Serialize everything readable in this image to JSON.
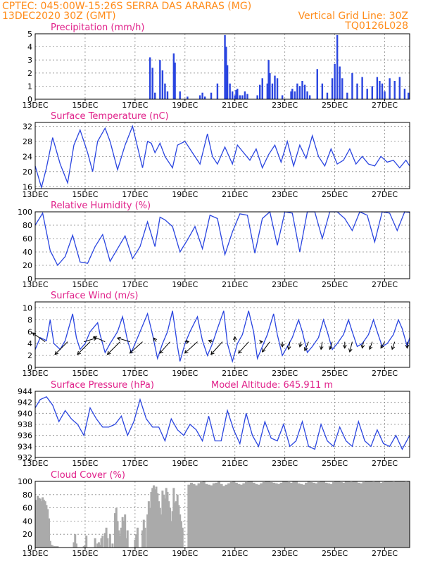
{
  "header": {
    "line1": "CPTEC:  045:00W-15:26S  SERRA DAS ARARAS (MG)",
    "line2_left": "13DEC2020 30Z (GMT)",
    "line2_right": "Vertical Grid Line: 30Z",
    "line3_right": "TQ0126L028"
  },
  "x_axis": {
    "tick_labels": [
      "13DEC",
      "15DEC",
      "17DEC",
      "19DEC",
      "21DEC",
      "23DEC",
      "25DEC",
      "27DEC"
    ],
    "tick_days": [
      0,
      2,
      4,
      6,
      8,
      10,
      12,
      14
    ],
    "range_days": [
      0,
      15
    ]
  },
  "colors": {
    "header": "#ff8c1a",
    "panel_title": "#e0218a",
    "line": "#2a45e0",
    "bars": "#2a45e0",
    "cloud_fill": "#aaaaaa"
  },
  "chart_data": [
    {
      "type": "bar",
      "title": "Precipitation (mm/h)",
      "ylim": [
        0,
        5
      ],
      "yticks": [
        0,
        1,
        2,
        3,
        4,
        5
      ],
      "x_days": [
        4.6,
        4.7,
        4.8,
        5.0,
        5.1,
        5.2,
        5.3,
        5.55,
        5.6,
        5.8,
        6.1,
        6.6,
        6.7,
        6.8,
        7.05,
        7.3,
        7.6,
        7.65,
        7.7,
        7.8,
        7.9,
        8.0,
        8.05,
        8.1,
        8.2,
        8.3,
        8.4,
        8.5,
        8.9,
        9.0,
        9.1,
        9.3,
        9.35,
        9.4,
        9.5,
        9.6,
        9.7,
        9.9,
        10.25,
        10.3,
        10.4,
        10.5,
        10.6,
        10.7,
        10.8,
        10.9,
        11.0,
        11.3,
        11.5,
        11.7,
        11.9,
        12.0,
        12.1,
        12.2,
        12.3,
        12.5,
        12.7,
        12.9,
        13.1,
        13.3,
        13.5,
        13.7,
        13.8,
        13.9,
        14.0,
        14.2,
        14.4,
        14.6,
        14.8,
        14.95
      ],
      "values": [
        3.2,
        2.4,
        0.5,
        3.0,
        2.2,
        1.2,
        0.6,
        3.5,
        2.8,
        0.6,
        0.2,
        0.3,
        0.5,
        0.2,
        0.5,
        1.2,
        4.9,
        4.0,
        2.6,
        1.2,
        0.6,
        0.3,
        0.7,
        0.8,
        0.3,
        0.3,
        0.6,
        0.4,
        0.3,
        1.1,
        1.6,
        1.2,
        3.0,
        2.0,
        1.2,
        1.8,
        1.6,
        0.3,
        0.6,
        0.8,
        0.6,
        1.2,
        1.0,
        1.4,
        1.1,
        0.6,
        0.3,
        2.3,
        1.2,
        0.5,
        1.6,
        2.7,
        4.9,
        2.5,
        1.6,
        0.5,
        2.0,
        1.2,
        1.7,
        0.8,
        1.0,
        1.7,
        1.4,
        1.2,
        0.6,
        1.6,
        1.4,
        1.7,
        0.8,
        0.5
      ]
    },
    {
      "type": "line",
      "title": "Surface Temperature (nC)",
      "ylim": [
        15.5,
        33
      ],
      "yticks": [
        16,
        20,
        24,
        28,
        32
      ],
      "x_days": [
        0,
        0.25,
        0.45,
        0.7,
        1.0,
        1.3,
        1.55,
        1.8,
        2.1,
        2.3,
        2.5,
        2.8,
        3.0,
        3.3,
        3.6,
        3.9,
        4.1,
        4.3,
        4.5,
        4.65,
        4.8,
        5.0,
        5.2,
        5.5,
        5.7,
        6.0,
        6.3,
        6.6,
        6.9,
        7.1,
        7.3,
        7.6,
        7.9,
        8.1,
        8.35,
        8.6,
        8.85,
        9.1,
        9.35,
        9.6,
        9.85,
        10.1,
        10.35,
        10.6,
        10.85,
        11.1,
        11.35,
        11.6,
        11.85,
        12.1,
        12.35,
        12.6,
        12.85,
        13.1,
        13.35,
        13.6,
        13.85,
        14.1,
        14.35,
        14.6,
        14.85,
        15.0
      ],
      "values": [
        21.5,
        15.8,
        21,
        29,
        22,
        17,
        27,
        31,
        25,
        20,
        28,
        31.5,
        28,
        20.5,
        27,
        32,
        26.5,
        21,
        28,
        27.5,
        25,
        27.5,
        24,
        21,
        27,
        28,
        25,
        22,
        30,
        24,
        22,
        26.5,
        22,
        27,
        25,
        23,
        26,
        21,
        24.5,
        27,
        22.5,
        28,
        21.5,
        27,
        23.5,
        29.5,
        24,
        21.5,
        26,
        22,
        23,
        26,
        22,
        24,
        22,
        21.5,
        24,
        22.5,
        23,
        21,
        23,
        21.5
      ]
    },
    {
      "type": "line",
      "title": "Relative Humidity (%)",
      "ylim": [
        0,
        100
      ],
      "yticks": [
        0,
        20,
        40,
        60,
        80,
        100
      ],
      "x_days": [
        0,
        0.3,
        0.6,
        0.9,
        1.2,
        1.5,
        1.8,
        2.1,
        2.4,
        2.7,
        3.0,
        3.3,
        3.6,
        3.9,
        4.2,
        4.5,
        4.8,
        5.0,
        5.2,
        5.5,
        5.8,
        6.1,
        6.4,
        6.7,
        7.0,
        7.3,
        7.6,
        7.9,
        8.2,
        8.5,
        8.8,
        9.1,
        9.4,
        9.7,
        10.0,
        10.3,
        10.6,
        10.9,
        11.2,
        11.5,
        11.8,
        12.1,
        12.4,
        12.7,
        13.0,
        13.3,
        13.6,
        13.9,
        14.2,
        14.5,
        14.8,
        15.0
      ],
      "values": [
        80,
        98,
        42,
        20,
        33,
        65,
        25,
        23,
        48,
        66,
        26,
        45,
        64,
        30,
        48,
        85,
        48,
        92,
        88,
        78,
        40,
        58,
        78,
        45,
        95,
        90,
        36,
        70,
        97,
        95,
        38,
        90,
        100,
        50,
        100,
        98,
        40,
        100,
        100,
        60,
        100,
        100,
        90,
        72,
        100,
        95,
        55,
        100,
        98,
        72,
        100,
        99
      ]
    },
    {
      "type": "line",
      "title": "Surface Wind (m/s)",
      "ylim": [
        0,
        11
      ],
      "yticks": [
        0,
        2,
        4,
        6,
        8,
        10
      ],
      "x_days": [
        0,
        0.2,
        0.45,
        0.6,
        0.75,
        1.0,
        1.2,
        1.5,
        1.65,
        1.8,
        2.0,
        2.2,
        2.5,
        2.6,
        2.8,
        3.0,
        3.3,
        3.5,
        3.7,
        3.85,
        4.0,
        4.2,
        4.5,
        4.7,
        4.9,
        5.1,
        5.3,
        5.5,
        5.7,
        5.8,
        6.0,
        6.2,
        6.5,
        6.7,
        6.9,
        7.1,
        7.3,
        7.55,
        7.7,
        7.9,
        8.1,
        8.3,
        8.55,
        8.75,
        8.9,
        9.1,
        9.3,
        9.55,
        9.7,
        9.9,
        10.1,
        10.3,
        10.55,
        10.7,
        10.9,
        11.1,
        11.35,
        11.55,
        11.7,
        11.9,
        12.1,
        12.35,
        12.55,
        12.7,
        12.9,
        13.1,
        13.35,
        13.55,
        13.7,
        13.9,
        14.1,
        14.35,
        14.55,
        14.7,
        14.9,
        15.0
      ],
      "values": [
        3,
        5,
        4.5,
        8,
        4,
        3,
        4.5,
        9,
        5,
        3,
        4,
        6,
        7.5,
        5.5,
        2.5,
        4,
        6,
        8.5,
        4.5,
        2.5,
        4,
        6,
        9,
        5.5,
        1.5,
        4,
        6,
        9.5,
        3.5,
        1,
        4,
        6,
        8.5,
        4.5,
        2,
        4,
        6.5,
        9.5,
        4,
        1,
        4,
        5.5,
        9.5,
        6,
        1.5,
        3.5,
        5.5,
        9,
        5.5,
        2,
        3.5,
        5,
        8,
        6,
        2.5,
        3.5,
        5,
        8,
        6,
        3,
        4,
        5.5,
        8,
        6,
        3.5,
        4,
        5.5,
        8,
        6,
        3.5,
        4,
        5.5,
        8,
        6.5,
        3.5,
        5
      ],
      "arrows": [
        {
          "day": 0.4,
          "dx": -1,
          "dy": 0.7
        },
        {
          "day": 1.3,
          "dx": -1,
          "dy": -1
        },
        {
          "day": 1.95,
          "dx": 1,
          "dy": 0.3
        },
        {
          "day": 2.2,
          "dx": -1,
          "dy": -1
        },
        {
          "day": 2.8,
          "dx": -0.9,
          "dy": 0.4
        },
        {
          "day": 3.4,
          "dx": -1,
          "dy": -1
        },
        {
          "day": 3.8,
          "dx": -1,
          "dy": 0.3
        },
        {
          "day": 4.3,
          "dx": -1,
          "dy": -0.9
        },
        {
          "day": 4.85,
          "dx": -0.2,
          "dy": 0.3
        },
        {
          "day": 5.4,
          "dx": -0.8,
          "dy": -0.9
        },
        {
          "day": 6.0,
          "dx": 0.3,
          "dy": 0
        },
        {
          "day": 6.5,
          "dx": -1,
          "dy": -0.9
        },
        {
          "day": 7.1,
          "dx": -0.3,
          "dy": 0.1
        },
        {
          "day": 7.5,
          "dx": -0.9,
          "dy": -1
        },
        {
          "day": 8.0,
          "dx": 0,
          "dy": 0.4
        },
        {
          "day": 8.55,
          "dx": -0.8,
          "dy": -0.9
        },
        {
          "day": 9.0,
          "dx": 0.2,
          "dy": 0
        },
        {
          "day": 9.4,
          "dx": -0.6,
          "dy": -0.8
        },
        {
          "day": 9.9,
          "dx": 0,
          "dy": -0.4
        },
        {
          "day": 10.2,
          "dx": -0.1,
          "dy": -0.6
        },
        {
          "day": 10.65,
          "dx": -0.1,
          "dy": -0.4
        },
        {
          "day": 10.95,
          "dx": -0.3,
          "dy": -0.7
        },
        {
          "day": 11.5,
          "dx": -0.1,
          "dy": -0.6
        },
        {
          "day": 11.9,
          "dx": -0.2,
          "dy": -0.6
        },
        {
          "day": 12.4,
          "dx": 0,
          "dy": -0.5
        },
        {
          "day": 12.7,
          "dx": -0.2,
          "dy": -0.8
        },
        {
          "day": 13.15,
          "dx": -0.1,
          "dy": -0.5
        },
        {
          "day": 13.5,
          "dx": -0.2,
          "dy": -0.6
        },
        {
          "day": 14.0,
          "dx": -0.3,
          "dy": -0.5
        },
        {
          "day": 14.4,
          "dx": -0.2,
          "dy": -0.6
        },
        {
          "day": 14.9,
          "dx": 0,
          "dy": -0.5
        }
      ]
    },
    {
      "type": "line",
      "title": "Surface Pressure (hPa)",
      "subtitle": "Model Altitude: 645.911 m",
      "ylim": [
        932,
        944
      ],
      "yticks": [
        932,
        934,
        936,
        938,
        940,
        942,
        944
      ],
      "x_days": [
        0,
        0.2,
        0.45,
        0.7,
        0.95,
        1.2,
        1.45,
        1.7,
        1.95,
        2.2,
        2.45,
        2.7,
        2.95,
        3.2,
        3.45,
        3.7,
        3.95,
        4.2,
        4.45,
        4.7,
        4.95,
        5.2,
        5.45,
        5.7,
        5.95,
        6.2,
        6.45,
        6.7,
        6.95,
        7.2,
        7.45,
        7.7,
        7.95,
        8.2,
        8.45,
        8.7,
        8.95,
        9.2,
        9.45,
        9.7,
        9.95,
        10.2,
        10.45,
        10.7,
        10.95,
        11.2,
        11.45,
        11.7,
        11.95,
        12.2,
        12.45,
        12.7,
        12.95,
        13.2,
        13.45,
        13.7,
        13.95,
        14.2,
        14.45,
        14.7,
        15.0
      ],
      "values": [
        941,
        942.5,
        943,
        941.5,
        938.5,
        940.5,
        939,
        938,
        936,
        941,
        939,
        937.5,
        937.5,
        938,
        939.5,
        936,
        938.5,
        942.5,
        939,
        937.5,
        937.5,
        935,
        939,
        937,
        936,
        938,
        937,
        935,
        939.5,
        935,
        935,
        940.5,
        937,
        934.5,
        940,
        936,
        934,
        938.5,
        935.5,
        935,
        938,
        934,
        935,
        938.5,
        934,
        933.5,
        938,
        935,
        934,
        937.5,
        935,
        934,
        938.5,
        935,
        934,
        937,
        934.5,
        934,
        936,
        933.5,
        936
      ]
    },
    {
      "type": "bar",
      "title": "Cloud Cover (%)",
      "ylim": [
        0,
        100
      ],
      "yticks": [
        0,
        20,
        40,
        60,
        80,
        100
      ],
      "x_days": [
        0.05,
        0.1,
        0.15,
        0.2,
        0.25,
        0.3,
        0.35,
        0.4,
        0.45,
        0.5,
        0.55,
        0.6,
        0.65,
        0.7,
        0.75,
        0.8,
        0.85,
        0.9,
        1.55,
        1.6,
        1.65,
        1.95,
        2.0,
        2.05,
        2.4,
        2.5,
        2.55,
        2.6,
        2.65,
        2.7,
        2.8,
        2.85,
        2.9,
        3.0,
        3.1,
        3.2,
        3.25,
        3.3,
        3.35,
        3.4,
        3.45,
        3.5,
        3.55,
        3.6,
        3.65,
        3.7,
        4.0,
        4.05,
        4.1,
        4.3,
        4.35,
        4.4,
        4.5,
        4.55,
        4.6,
        4.65,
        4.7,
        4.75,
        4.8,
        4.85,
        4.9,
        4.95,
        5.0,
        5.05,
        5.1,
        5.15,
        5.2,
        5.25,
        5.3,
        5.35,
        5.4,
        5.45,
        5.5,
        5.55,
        5.6,
        5.65,
        5.7,
        5.75,
        5.8,
        5.85,
        5.9
      ],
      "values": [
        72,
        78,
        75,
        74,
        70,
        76,
        72,
        70,
        64,
        58,
        44,
        10,
        4,
        3,
        2,
        2,
        2,
        2,
        8,
        20,
        6,
        2,
        4,
        18,
        14,
        6,
        8,
        4,
        14,
        18,
        22,
        30,
        14,
        20,
        6,
        52,
        60,
        40,
        26,
        18,
        30,
        46,
        40,
        50,
        14,
        26,
        12,
        20,
        30,
        26,
        42,
        30,
        50,
        70,
        60,
        84,
        90,
        94,
        88,
        92,
        82,
        70,
        60,
        50,
        86,
        80,
        74,
        90,
        84,
        70,
        60,
        40,
        55,
        90,
        68,
        70,
        80,
        64,
        50,
        40,
        30
      ],
      "fill_from_day": 6.1,
      "fill_level": [
        95,
        98,
        96,
        94,
        97,
        99,
        100,
        96,
        95,
        94,
        97,
        98,
        100,
        96,
        93,
        95,
        97,
        99,
        100,
        98,
        96,
        95,
        97,
        99,
        100,
        100,
        98,
        96,
        95,
        97,
        99,
        100,
        100,
        99,
        98,
        97,
        96,
        98,
        100,
        100,
        99,
        98,
        100,
        100,
        97,
        96,
        95,
        98,
        100,
        99,
        98,
        97,
        99,
        100,
        100,
        98,
        97,
        96,
        99,
        100,
        100,
        99,
        98,
        100,
        100,
        99,
        100,
        100,
        98,
        97,
        99,
        100,
        100,
        100,
        99,
        100,
        100,
        98,
        99,
        100,
        100,
        100,
        99,
        100,
        100,
        100,
        100,
        99,
        100
      ]
    }
  ]
}
